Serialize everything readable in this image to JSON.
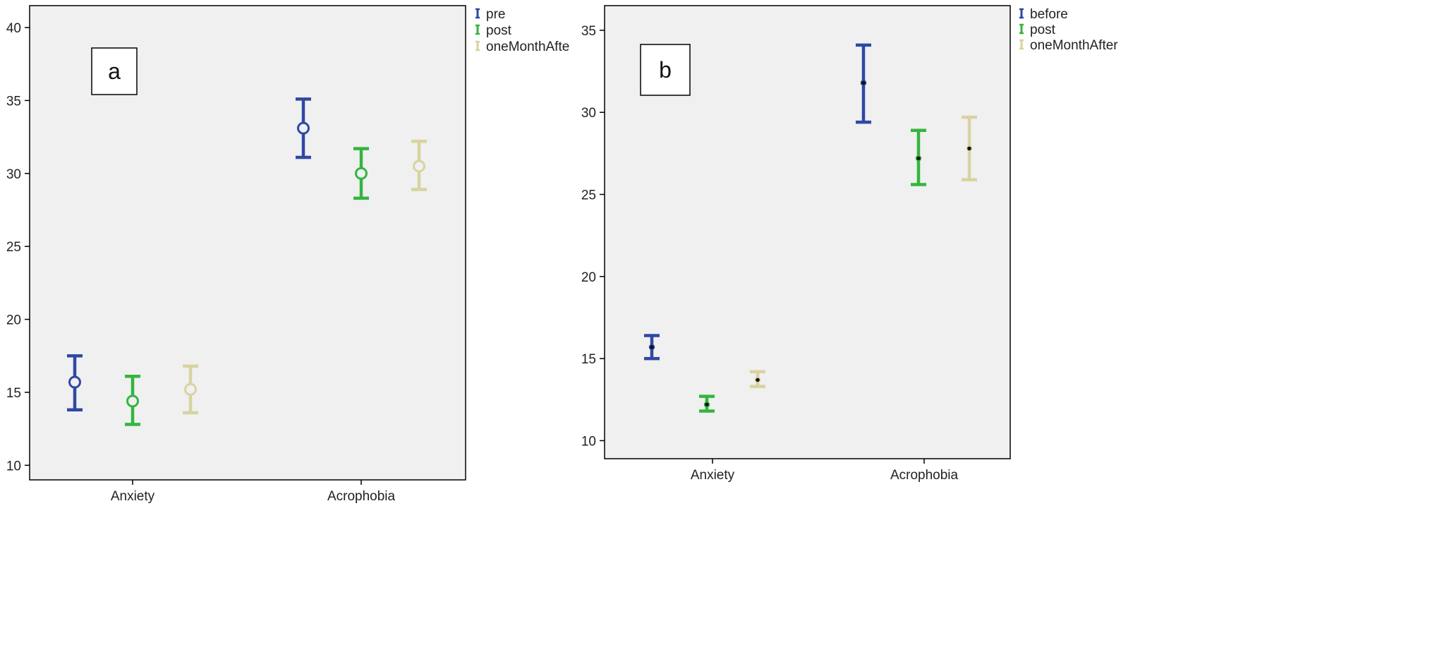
{
  "chart_data": [
    {
      "type": "errorbar",
      "panel_label": "a",
      "categories": [
        "Anxiety",
        "Acrophobia"
      ],
      "ylim": [
        9,
        41.5
      ],
      "yticks": [
        10,
        15,
        20,
        25,
        30,
        35,
        40
      ],
      "grid": false,
      "marker": "circle",
      "legend_position": "top-right",
      "series": [
        {
          "name": "pre",
          "color": "#2f48a5",
          "values": [
            15.7,
            33.1
          ],
          "lower": [
            13.8,
            31.1
          ],
          "upper": [
            17.5,
            35.1
          ]
        },
        {
          "name": "post",
          "color": "#34b53f",
          "values": [
            14.4,
            30.0
          ],
          "lower": [
            12.8,
            28.3
          ],
          "upper": [
            16.1,
            31.7
          ]
        },
        {
          "name": "oneMonthAfte",
          "color": "#d8d3a0",
          "values": [
            15.2,
            30.5
          ],
          "lower": [
            13.6,
            28.9
          ],
          "upper": [
            16.8,
            32.2
          ]
        }
      ]
    },
    {
      "type": "errorbar",
      "panel_label": "b",
      "categories": [
        "Anxiety",
        "Acrophobia"
      ],
      "ylim": [
        8.9,
        36.5
      ],
      "yticks": [
        10,
        15,
        20,
        25,
        30,
        35
      ],
      "grid": false,
      "marker": "dot",
      "legend_position": "top-right",
      "series": [
        {
          "name": "before",
          "color": "#2f48a5",
          "values": [
            15.7,
            31.8
          ],
          "lower": [
            15.0,
            29.4
          ],
          "upper": [
            16.4,
            34.1
          ]
        },
        {
          "name": "post",
          "color": "#34b53f",
          "values": [
            12.2,
            27.2
          ],
          "lower": [
            11.8,
            25.6
          ],
          "upper": [
            12.7,
            28.9
          ]
        },
        {
          "name": "oneMonthAfter",
          "color": "#d8d3a0",
          "values": [
            13.7,
            27.8
          ],
          "lower": [
            13.3,
            25.9
          ],
          "upper": [
            14.2,
            29.7
          ]
        }
      ]
    }
  ]
}
